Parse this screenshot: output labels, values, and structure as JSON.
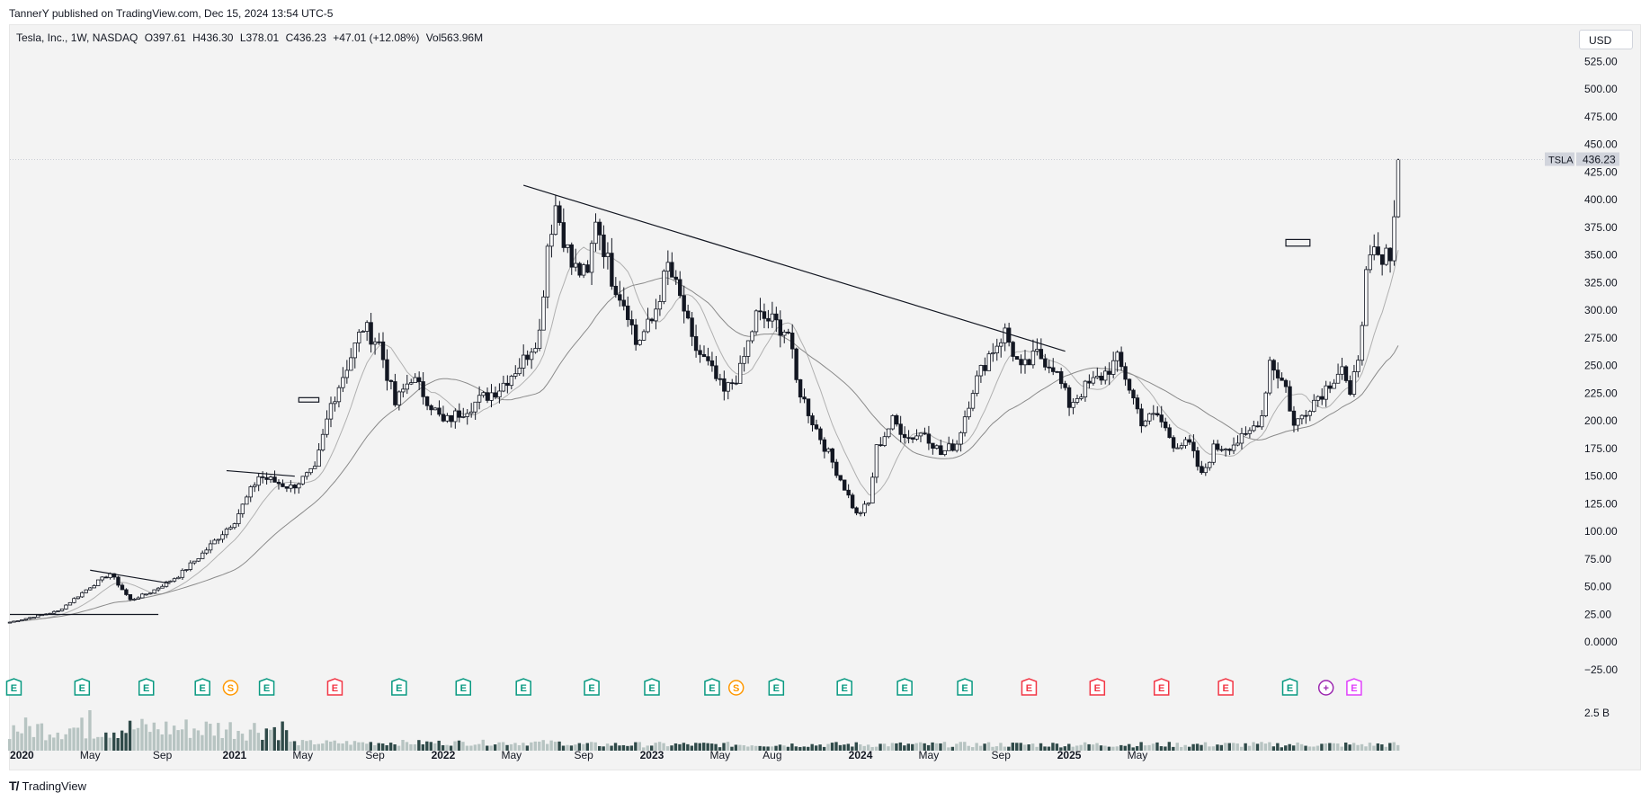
{
  "publisher": "TannerY published on TradingView.com, Dec 15, 2024 13:54 UTC-5",
  "symbol_info": {
    "name": "Tesla, Inc., 1W, NASDAQ",
    "open": "O397.61",
    "high": "H436.30",
    "low": "L378.01",
    "close": "C436.23",
    "change": "+47.01 (+12.08%)",
    "volume": "Vol563.96M"
  },
  "currency": "USD",
  "last_price": {
    "ticker": "TSLA",
    "value": "436.23"
  },
  "volume_scale_label": "2.5 B",
  "logo_text": "TradingView",
  "colors": {
    "background": "#f3f3f3",
    "candle": "#131722",
    "ma_fast": "#b0b0b0",
    "ma_slow": "#8a8a8a",
    "earnings_green": "#089981",
    "earnings_red": "#f23645",
    "split_orange": "#ff9800",
    "future_purple": "#9c27b0",
    "future_magenta": "#e040fb"
  },
  "chart_data": {
    "type": "candlestick",
    "ylim": [
      -25,
      535
    ],
    "y_ticks": [
      "525.00",
      "500.00",
      "475.00",
      "450.00",
      "425.00",
      "400.00",
      "375.00",
      "350.00",
      "325.00",
      "300.00",
      "275.00",
      "250.00",
      "225.00",
      "200.00",
      "175.00",
      "150.00",
      "125.00",
      "100.00",
      "75.00",
      "50.00",
      "25.00",
      "0.0000",
      "−25.00"
    ],
    "x_ticks": [
      "2020",
      "May",
      "Sep",
      "2021",
      "May",
      "Sep",
      "2022",
      "May",
      "Sep",
      "2023",
      "May",
      "Aug",
      "2024",
      "May",
      "Sep",
      "2025",
      "May"
    ],
    "anchors": [
      {
        "t": 0,
        "p": 18
      },
      {
        "t": 12,
        "p": 28
      },
      {
        "t": 20,
        "p": 50
      },
      {
        "t": 25,
        "p": 62
      },
      {
        "t": 30,
        "p": 38
      },
      {
        "t": 35,
        "p": 45
      },
      {
        "t": 42,
        "p": 60
      },
      {
        "t": 48,
        "p": 80
      },
      {
        "t": 56,
        "p": 110
      },
      {
        "t": 62,
        "p": 150
      },
      {
        "t": 70,
        "p": 140
      },
      {
        "t": 76,
        "p": 155
      },
      {
        "t": 80,
        "p": 215
      },
      {
        "t": 84,
        "p": 250
      },
      {
        "t": 88,
        "p": 285
      },
      {
        "t": 92,
        "p": 270
      },
      {
        "t": 96,
        "p": 215
      },
      {
        "t": 100,
        "p": 240
      },
      {
        "t": 104,
        "p": 220
      },
      {
        "t": 108,
        "p": 198
      },
      {
        "t": 114,
        "p": 212
      },
      {
        "t": 122,
        "p": 230
      },
      {
        "t": 128,
        "p": 255
      },
      {
        "t": 132,
        "p": 280
      },
      {
        "t": 134,
        "p": 360
      },
      {
        "t": 136,
        "p": 395
      },
      {
        "t": 140,
        "p": 340
      },
      {
        "t": 144,
        "p": 330
      },
      {
        "t": 146,
        "p": 385
      },
      {
        "t": 150,
        "p": 330
      },
      {
        "t": 154,
        "p": 300
      },
      {
        "t": 156,
        "p": 270
      },
      {
        "t": 160,
        "p": 290
      },
      {
        "t": 164,
        "p": 340
      },
      {
        "t": 168,
        "p": 300
      },
      {
        "t": 170,
        "p": 270
      },
      {
        "t": 174,
        "p": 250
      },
      {
        "t": 178,
        "p": 225
      },
      {
        "t": 182,
        "p": 245
      },
      {
        "t": 186,
        "p": 295
      },
      {
        "t": 190,
        "p": 290
      },
      {
        "t": 194,
        "p": 280
      },
      {
        "t": 196,
        "p": 235
      },
      {
        "t": 200,
        "p": 200
      },
      {
        "t": 204,
        "p": 170
      },
      {
        "t": 208,
        "p": 140
      },
      {
        "t": 211,
        "p": 115
      },
      {
        "t": 214,
        "p": 125
      },
      {
        "t": 216,
        "p": 175
      },
      {
        "t": 220,
        "p": 200
      },
      {
        "t": 224,
        "p": 185
      },
      {
        "t": 228,
        "p": 190
      },
      {
        "t": 232,
        "p": 170
      },
      {
        "t": 236,
        "p": 180
      },
      {
        "t": 240,
        "p": 230
      },
      {
        "t": 244,
        "p": 260
      },
      {
        "t": 248,
        "p": 280
      },
      {
        "t": 252,
        "p": 245
      },
      {
        "t": 256,
        "p": 260
      },
      {
        "t": 260,
        "p": 250
      },
      {
        "t": 264,
        "p": 215
      },
      {
        "t": 268,
        "p": 230
      },
      {
        "t": 272,
        "p": 240
      },
      {
        "t": 276,
        "p": 255
      },
      {
        "t": 278,
        "p": 240
      },
      {
        "t": 282,
        "p": 200
      },
      {
        "t": 286,
        "p": 205
      },
      {
        "t": 290,
        "p": 180
      },
      {
        "t": 294,
        "p": 178
      },
      {
        "t": 297,
        "p": 150
      },
      {
        "t": 300,
        "p": 175
      },
      {
        "t": 304,
        "p": 178
      },
      {
        "t": 308,
        "p": 185
      },
      {
        "t": 312,
        "p": 205
      },
      {
        "t": 314,
        "p": 255
      },
      {
        "t": 318,
        "p": 230
      },
      {
        "t": 320,
        "p": 195
      },
      {
        "t": 324,
        "p": 215
      },
      {
        "t": 328,
        "p": 230
      },
      {
        "t": 332,
        "p": 250
      },
      {
        "t": 334,
        "p": 218
      },
      {
        "t": 336,
        "p": 260
      },
      {
        "t": 338,
        "p": 330
      },
      {
        "t": 340,
        "p": 350
      },
      {
        "t": 342,
        "p": 340
      },
      {
        "t": 344,
        "p": 355
      },
      {
        "t": 345,
        "p": 389
      },
      {
        "t": 346,
        "p": 436
      }
    ],
    "last_close": 436.23,
    "series": [
      {
        "name": "",
        "kind": "ma_fast"
      },
      {
        "name": "",
        "kind": "ma_slow"
      }
    ],
    "events": [
      {
        "t": 1,
        "label": "E",
        "kind": "earnings_green"
      },
      {
        "t": 18,
        "label": "E",
        "kind": "earnings_green"
      },
      {
        "t": 34,
        "label": "E",
        "kind": "earnings_green"
      },
      {
        "t": 48,
        "label": "E",
        "kind": "earnings_green"
      },
      {
        "t": 55,
        "label": "S",
        "kind": "split_orange"
      },
      {
        "t": 64,
        "label": "E",
        "kind": "earnings_green"
      },
      {
        "t": 81,
        "label": "E",
        "kind": "earnings_red"
      },
      {
        "t": 97,
        "label": "E",
        "kind": "earnings_green"
      },
      {
        "t": 113,
        "label": "E",
        "kind": "earnings_green"
      },
      {
        "t": 128,
        "label": "E",
        "kind": "earnings_green"
      },
      {
        "t": 145,
        "label": "E",
        "kind": "earnings_green"
      },
      {
        "t": 160,
        "label": "E",
        "kind": "earnings_green"
      },
      {
        "t": 175,
        "label": "E",
        "kind": "earnings_green"
      },
      {
        "t": 181,
        "label": "S",
        "kind": "split_orange"
      },
      {
        "t": 191,
        "label": "E",
        "kind": "earnings_green"
      },
      {
        "t": 208,
        "label": "E",
        "kind": "earnings_green"
      },
      {
        "t": 223,
        "label": "E",
        "kind": "earnings_green"
      },
      {
        "t": 238,
        "label": "E",
        "kind": "earnings_green"
      },
      {
        "t": 254,
        "label": "E",
        "kind": "earnings_red"
      },
      {
        "t": 271,
        "label": "E",
        "kind": "earnings_red"
      },
      {
        "t": 287,
        "label": "E",
        "kind": "earnings_red"
      },
      {
        "t": 303,
        "label": "E",
        "kind": "earnings_red"
      },
      {
        "t": 319,
        "label": "E",
        "kind": "earnings_green"
      },
      {
        "t": 328,
        "label": "+",
        "kind": "future_purple"
      },
      {
        "t": 335,
        "label": "E",
        "kind": "future_magenta"
      }
    ],
    "drawings": [
      {
        "name": "trendline-main",
        "points": [
          [
            128,
            413
          ],
          [
            263,
            263
          ]
        ]
      },
      {
        "name": "trendline-2020-top",
        "points": [
          [
            20,
            65
          ],
          [
            40,
            53
          ]
        ]
      },
      {
        "name": "support-2020",
        "points": [
          [
            0,
            25
          ],
          [
            37,
            25
          ]
        ]
      },
      {
        "name": "trendline-2020-mid",
        "points": [
          [
            54,
            155
          ],
          [
            71,
            150
          ]
        ]
      },
      {
        "name": "breakout-box-2021",
        "points": [
          [
            72,
            221
          ],
          [
            77,
            217
          ]
        ]
      },
      {
        "name": "breakout-box-2024",
        "points": [
          [
            318,
            364
          ],
          [
            324,
            358
          ]
        ]
      }
    ]
  }
}
